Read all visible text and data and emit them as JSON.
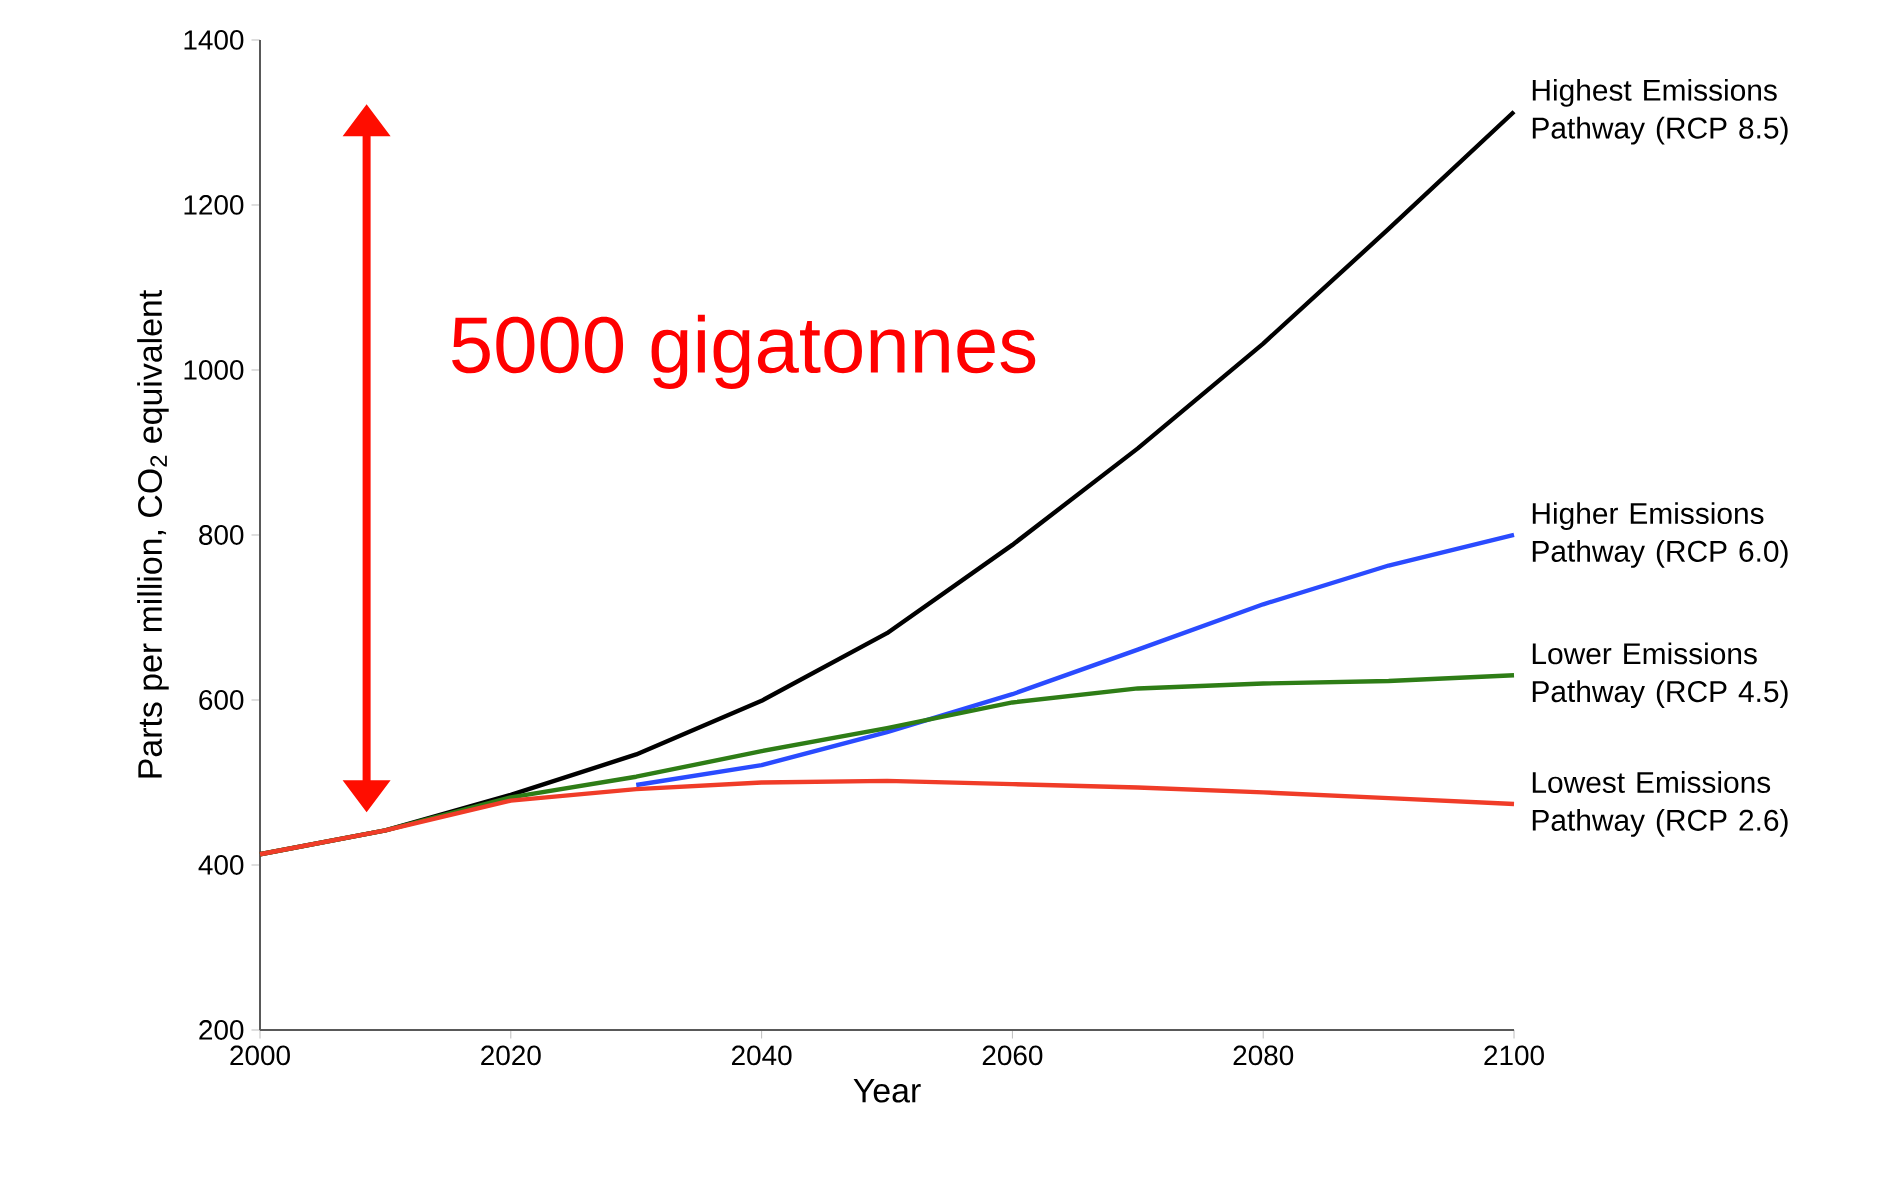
{
  "chart_data": {
    "type": "line",
    "xlabel": "Year",
    "ylabel": "Parts per million, CO$_{2}$ equivalent",
    "x": [
      2000,
      2010,
      2020,
      2030,
      2040,
      2050,
      2060,
      2070,
      2080,
      2090,
      2100
    ],
    "series": [
      {
        "name": "Highest Emissions Pathway (RCP 8.5)",
        "color": "#000000",
        "values": [
          413,
          442,
          485,
          534,
          599,
          681,
          788,
          905,
          1032,
          1171,
          1313
        ]
      },
      {
        "name": "Higher Emissions Pathway (RCP 6.0)",
        "color": "#2a4bff",
        "values": [
          null,
          null,
          null,
          497,
          521,
          561,
          607,
          661,
          716,
          763,
          800
        ]
      },
      {
        "name": "Lower Emissions Pathway (RCP 4.5)",
        "color": "#2e7d16",
        "values": [
          413,
          442,
          482,
          507,
          538,
          566,
          597,
          614,
          620,
          623,
          630
        ]
      },
      {
        "name": "Lowest Emissions Pathway (RCP 2.6)",
        "color": "#f03c28",
        "values": [
          413,
          442,
          478,
          492,
          500,
          502,
          498,
          494,
          488,
          481,
          474
        ]
      }
    ],
    "xlim": [
      2000,
      2100
    ],
    "ylim": [
      200,
      1400
    ],
    "xticks": [
      2000,
      2020,
      2040,
      2060,
      2080,
      2100
    ],
    "yticks": [
      200,
      400,
      600,
      800,
      1000,
      1200,
      1400
    ],
    "annotations": [
      "5000 gigatonnes"
    ],
    "legend": false,
    "grid": false,
    "marker": "none",
    "line_style": "solid"
  }
}
